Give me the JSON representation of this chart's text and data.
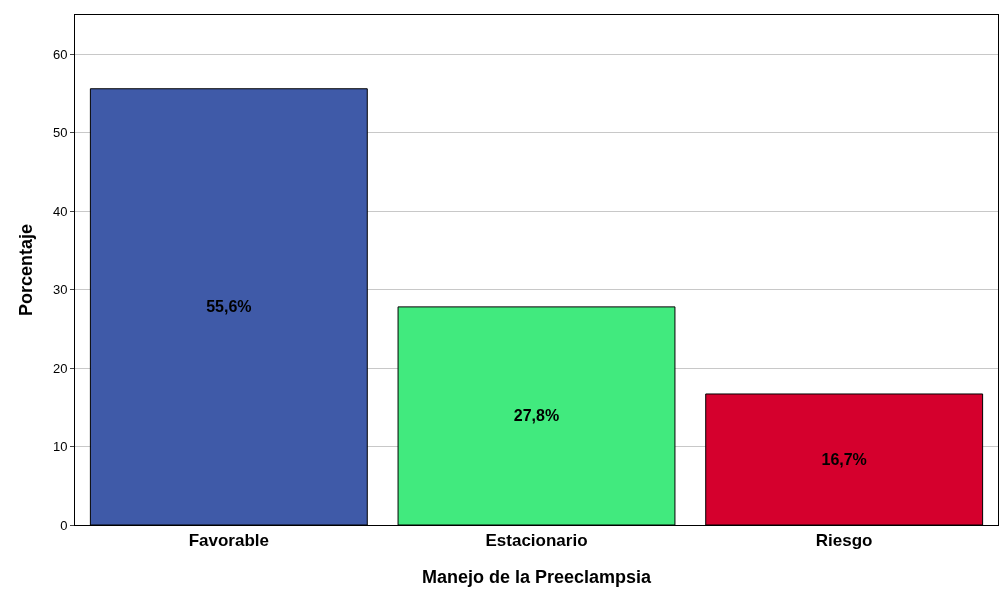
{
  "chart_data": {
    "type": "bar",
    "xlabel": "Manejo de la Preeclampsia",
    "ylabel": "Porcentaje",
    "categories": [
      "Favorable",
      "Estacionario",
      "Riesgo"
    ],
    "values": [
      55.6,
      27.8,
      16.7
    ],
    "colors": [
      "#3f5aa8",
      "#41ea7e",
      "#d5002d"
    ],
    "value_labels": [
      "55,6%",
      "27,8%",
      "16,7%"
    ],
    "ylim": [
      0,
      65
    ],
    "yticks": [
      0,
      10,
      20,
      30,
      40,
      50,
      60
    ],
    "grid": "y",
    "legend": false
  }
}
